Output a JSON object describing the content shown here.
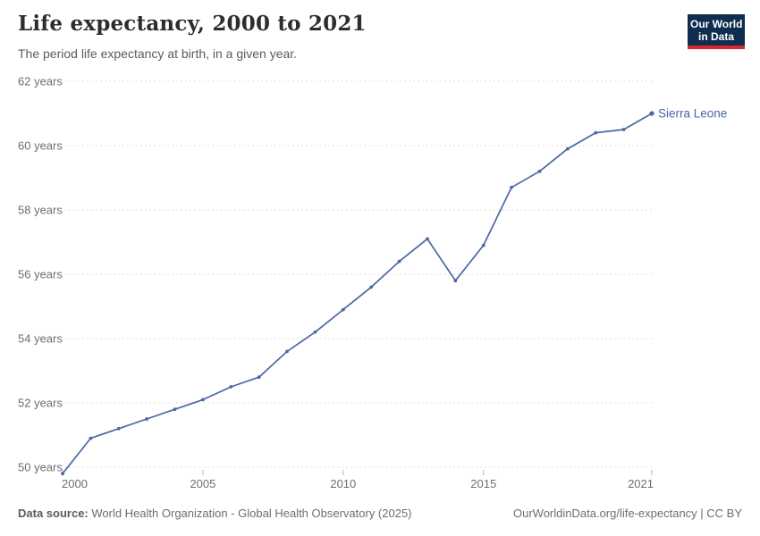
{
  "header": {
    "title": "Life expectancy, 2000 to 2021",
    "subtitle": "The period life expectancy at birth, in a given year.",
    "logo": {
      "line1": "Our World",
      "line2": "in Data"
    }
  },
  "footer": {
    "source_label": "Data source:",
    "source_text": " World Health Organization - Global Health Observatory (2025)",
    "license_text": "OurWorldinData.org/life-expectancy | CC BY"
  },
  "colors": {
    "line": "#4a69a2",
    "logo_bg": "#0f2d4e",
    "logo_stripe": "#d7282f",
    "gridline": "#dcdcdc",
    "axis_text": "#6e6e6e",
    "title_text": "#2d2d2d"
  },
  "chart_data": {
    "type": "line",
    "title": "Life expectancy, 2000 to 2021",
    "subtitle": "The period life expectancy at birth, in a given year.",
    "x": [
      2000,
      2001,
      2002,
      2003,
      2004,
      2005,
      2006,
      2007,
      2008,
      2009,
      2010,
      2011,
      2012,
      2013,
      2014,
      2015,
      2016,
      2017,
      2018,
      2019,
      2020,
      2021
    ],
    "series": [
      {
        "name": "Sierra Leone",
        "color": "#4a69a2",
        "values": [
          49.8,
          50.9,
          51.2,
          51.5,
          51.8,
          52.1,
          52.5,
          52.8,
          53.6,
          54.2,
          54.9,
          55.6,
          56.4,
          57.1,
          55.8,
          56.9,
          58.7,
          59.2,
          59.9,
          60.4,
          60.5,
          61.0
        ]
      }
    ],
    "xlim": [
      2000,
      2021
    ],
    "ylim": [
      50,
      62
    ],
    "yticks": [
      {
        "value": 50,
        "label": "50 years"
      },
      {
        "value": 52,
        "label": "52 years"
      },
      {
        "value": 54,
        "label": "54 years"
      },
      {
        "value": 56,
        "label": "56 years"
      },
      {
        "value": 58,
        "label": "58 years"
      },
      {
        "value": 60,
        "label": "60 years"
      },
      {
        "value": 62,
        "label": "62 years"
      }
    ],
    "xticks": [
      {
        "value": 2000,
        "label": "2000"
      },
      {
        "value": 2005,
        "label": "2005"
      },
      {
        "value": 2010,
        "label": "2010"
      },
      {
        "value": 2015,
        "label": "2015"
      },
      {
        "value": 2021,
        "label": "2021"
      }
    ],
    "grid": "horizontal-dashed",
    "legend_position": "line-end-label",
    "ylabel": "",
    "xlabel": ""
  }
}
